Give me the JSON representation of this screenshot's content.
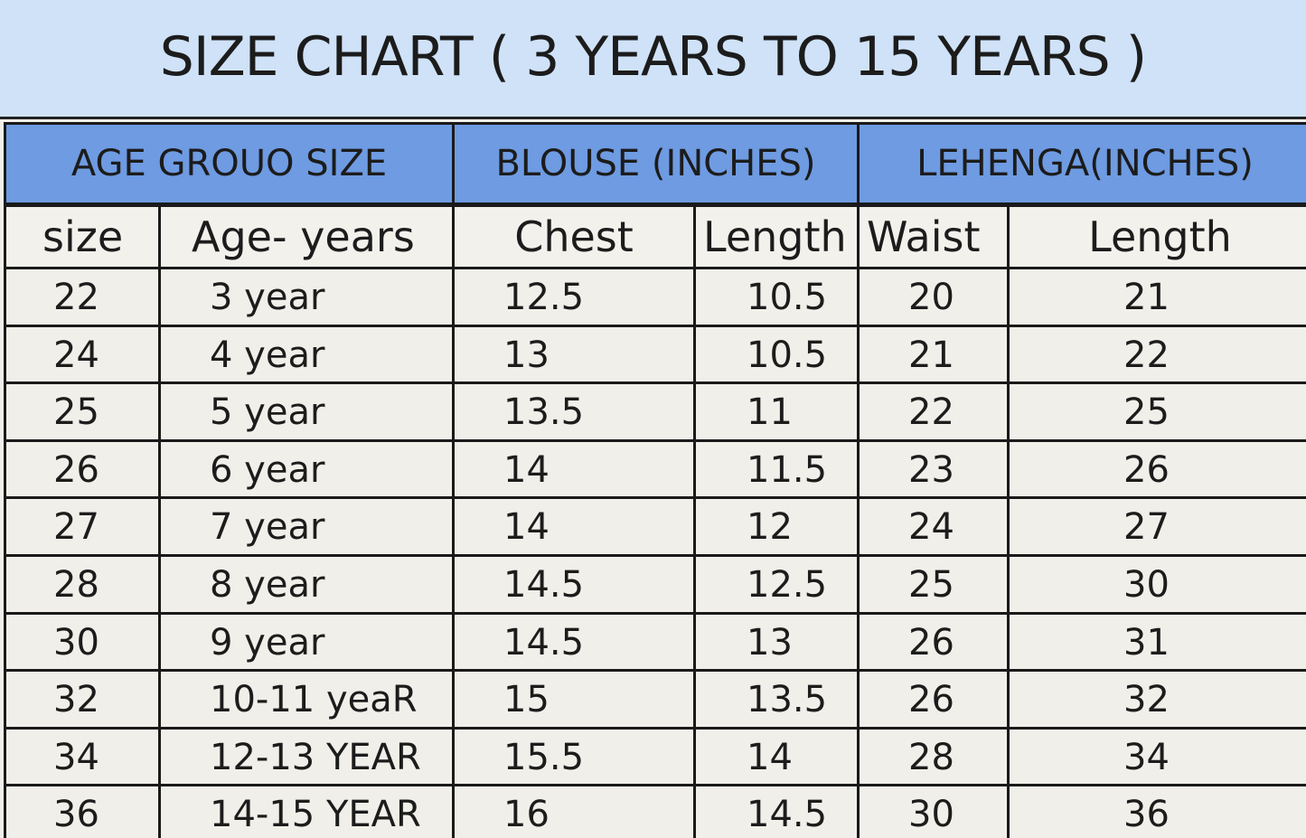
{
  "title": "SIZE CHART ( 3  YEARS TO 15 YEARS )",
  "table": {
    "group_headers": [
      "AGE GROUO SIZE",
      "BLOUSE (INCHES)",
      "LEHENGA(INCHES)"
    ],
    "columns": [
      "size",
      "Age-  years",
      "Chest",
      "Length",
      "Waist",
      "Length"
    ],
    "rows": [
      [
        "22",
        "3 year",
        "12.5",
        "10.5",
        "20",
        "21"
      ],
      [
        "24",
        "4 year",
        "13",
        "10.5",
        "21",
        "22"
      ],
      [
        "25",
        "5 year",
        "13.5",
        "11",
        "22",
        "25"
      ],
      [
        "26",
        "6 year",
        "14",
        "11.5",
        "23",
        "26"
      ],
      [
        "27",
        "7 year",
        "14",
        "12",
        "24",
        "27"
      ],
      [
        "28",
        "8 year",
        "14.5",
        "12.5",
        "25",
        "30"
      ],
      [
        "30",
        "9 year",
        "14.5",
        "13",
        "26",
        "31"
      ],
      [
        "32",
        "10-11 yeaR",
        "15",
        "13.5",
        "26",
        "32"
      ],
      [
        "34",
        "12-13 YEAR",
        "15.5",
        "14",
        "28",
        "34"
      ],
      [
        "36",
        "14-15 YEAR",
        "16",
        "14.5",
        "30",
        "36"
      ]
    ]
  }
}
